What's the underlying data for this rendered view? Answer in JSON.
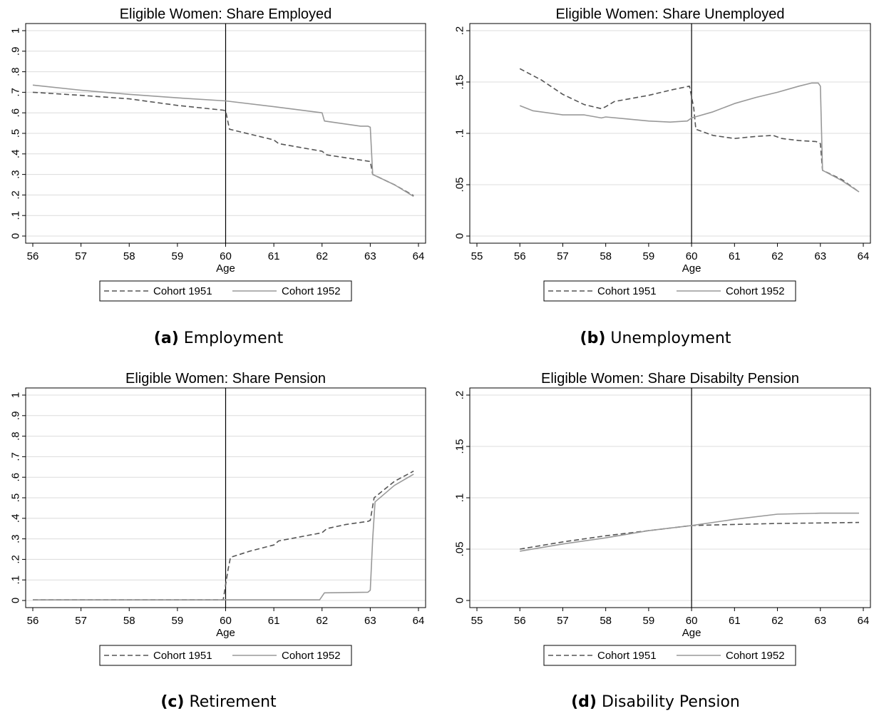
{
  "chart_data": [
    {
      "panel": "a",
      "type": "line",
      "title": "Eligible Women: Share Employed",
      "caption_letter": "(a)",
      "caption_text": "Employment",
      "xlabel": "Age",
      "ylabel": "",
      "xlim": [
        56,
        64
      ],
      "ylim": [
        0,
        1
      ],
      "xticks": [
        56,
        57,
        58,
        59,
        60,
        61,
        62,
        63,
        64
      ],
      "xtick_labels": [
        "56",
        "57",
        "58",
        "59",
        "60",
        "61",
        "62",
        "63",
        "64"
      ],
      "yticks": [
        0,
        0.1,
        0.2,
        0.3,
        0.4,
        0.5,
        0.6,
        0.7,
        0.8,
        0.9,
        1
      ],
      "ytick_labels": [
        "0",
        ".1",
        ".2",
        ".3",
        ".4",
        ".5",
        ".6",
        ".7",
        ".8",
        ".9",
        "1"
      ],
      "vline": 60,
      "grid": true,
      "legend": "bottom",
      "series": [
        {
          "name": "Cohort 1951",
          "style": "dashed",
          "color": "#555555",
          "x": [
            56,
            57,
            58,
            59,
            59.95,
            60,
            60.08,
            61,
            61.1,
            62,
            62.1,
            63,
            63.05,
            63.5,
            63.9
          ],
          "y": [
            0.7,
            0.685,
            0.668,
            0.636,
            0.613,
            0.61,
            0.52,
            0.468,
            0.45,
            0.413,
            0.395,
            0.363,
            0.3,
            0.25,
            0.197
          ]
        },
        {
          "name": "Cohort 1952",
          "style": "solid",
          "color": "#999999",
          "x": [
            56,
            57,
            58,
            59,
            60,
            61,
            62,
            62.05,
            62.8,
            62.95,
            63,
            63.05,
            63.5,
            63.9
          ],
          "y": [
            0.735,
            0.71,
            0.69,
            0.673,
            0.658,
            0.63,
            0.6,
            0.56,
            0.535,
            0.535,
            0.53,
            0.3,
            0.25,
            0.193
          ]
        }
      ]
    },
    {
      "panel": "b",
      "type": "line",
      "title": "Eligible Women: Share Unemployed",
      "caption_letter": "(b)",
      "caption_text": "Unemployment",
      "xlabel": "Age",
      "ylabel": "",
      "xlim": [
        55,
        64
      ],
      "ylim": [
        0,
        0.2
      ],
      "xticks": [
        55,
        56,
        57,
        58,
        59,
        60,
        61,
        62,
        63,
        64
      ],
      "xtick_labels": [
        "55",
        "56",
        "57",
        "58",
        "59",
        "60",
        "61",
        "62",
        "63",
        "64"
      ],
      "yticks": [
        0,
        0.05,
        0.1,
        0.15,
        0.2
      ],
      "ytick_labels": [
        "0",
        ".05",
        ".1",
        ".15",
        ".2"
      ],
      "vline": 60,
      "grid": true,
      "legend": "bottom",
      "series": [
        {
          "name": "Cohort 1951",
          "style": "dashed",
          "color": "#555555",
          "x": [
            56,
            56.5,
            57,
            57.5,
            57.9,
            58,
            58.2,
            58.6,
            59,
            59.5,
            59.95,
            60.05,
            60.1,
            60.5,
            61,
            61.5,
            61.9,
            62.1,
            62.5,
            62.9,
            63,
            63.05,
            63.5,
            63.9
          ],
          "y": [
            0.163,
            0.152,
            0.138,
            0.128,
            0.124,
            0.126,
            0.131,
            0.134,
            0.137,
            0.142,
            0.146,
            0.125,
            0.104,
            0.098,
            0.095,
            0.097,
            0.098,
            0.095,
            0.093,
            0.092,
            0.09,
            0.064,
            0.055,
            0.043
          ]
        },
        {
          "name": "Cohort 1952",
          "style": "solid",
          "color": "#999999",
          "x": [
            56,
            56.3,
            57,
            57.5,
            57.9,
            58,
            58.5,
            59,
            59.5,
            59.9,
            60,
            60.5,
            61,
            61.5,
            62,
            62.5,
            62.8,
            62.95,
            63,
            63.05,
            63.5,
            63.9
          ],
          "y": [
            0.127,
            0.122,
            0.118,
            0.118,
            0.115,
            0.116,
            0.114,
            0.112,
            0.111,
            0.112,
            0.115,
            0.121,
            0.129,
            0.135,
            0.14,
            0.146,
            0.149,
            0.149,
            0.146,
            0.064,
            0.054,
            0.043
          ]
        }
      ]
    },
    {
      "panel": "c",
      "type": "line",
      "title": "Eligible Women: Share Pension",
      "caption_letter": "(c)",
      "caption_text": "Retirement",
      "xlabel": "Age",
      "ylabel": "",
      "xlim": [
        56,
        64
      ],
      "ylim": [
        0,
        1
      ],
      "xticks": [
        56,
        57,
        58,
        59,
        60,
        61,
        62,
        63,
        64
      ],
      "xtick_labels": [
        "56",
        "57",
        "58",
        "59",
        "60",
        "61",
        "62",
        "63",
        "64"
      ],
      "yticks": [
        0,
        0.1,
        0.2,
        0.3,
        0.4,
        0.5,
        0.6,
        0.7,
        0.8,
        0.9,
        1
      ],
      "ytick_labels": [
        "0",
        ".1",
        ".2",
        ".3",
        ".4",
        ".5",
        ".6",
        ".7",
        ".8",
        ".9",
        "1"
      ],
      "vline": 60,
      "grid": true,
      "legend": "bottom",
      "series": [
        {
          "name": "Cohort 1951",
          "style": "dashed",
          "color": "#555555",
          "x": [
            56,
            59.95,
            60.05,
            60.1,
            60.5,
            61,
            61.1,
            62,
            62.1,
            62.5,
            62.95,
            63,
            63.08,
            63.5,
            63.9
          ],
          "y": [
            0.003,
            0.003,
            0.15,
            0.21,
            0.24,
            0.27,
            0.29,
            0.33,
            0.35,
            0.37,
            0.385,
            0.39,
            0.5,
            0.58,
            0.63
          ]
        },
        {
          "name": "Cohort 1952",
          "style": "solid",
          "color": "#999999",
          "x": [
            56,
            61.95,
            62.05,
            62.95,
            63,
            63.05,
            63.1,
            63.5,
            63.9
          ],
          "y": [
            0.003,
            0.003,
            0.037,
            0.04,
            0.05,
            0.3,
            0.48,
            0.56,
            0.615
          ]
        }
      ]
    },
    {
      "panel": "d",
      "type": "line",
      "title": "Eligible Women: Share Disabilty Pension",
      "caption_letter": "(d)",
      "caption_text": "Disability Pension",
      "xlabel": "Age",
      "ylabel": "",
      "xlim": [
        55,
        64
      ],
      "ylim": [
        0,
        0.2
      ],
      "xticks": [
        55,
        56,
        57,
        58,
        59,
        60,
        61,
        62,
        63,
        64
      ],
      "xtick_labels": [
        "55",
        "56",
        "57",
        "58",
        "59",
        "60",
        "61",
        "62",
        "63",
        "64"
      ],
      "yticks": [
        0,
        0.05,
        0.1,
        0.15,
        0.2
      ],
      "ytick_labels": [
        "0",
        ".05",
        ".1",
        ".15",
        ".2"
      ],
      "vline": 60,
      "grid": true,
      "legend": "bottom",
      "series": [
        {
          "name": "Cohort 1951",
          "style": "dashed",
          "color": "#555555",
          "x": [
            56,
            57,
            58,
            59,
            60,
            61,
            62,
            63,
            63.9
          ],
          "y": [
            0.05,
            0.057,
            0.063,
            0.068,
            0.073,
            0.074,
            0.075,
            0.0755,
            0.076
          ]
        },
        {
          "name": "Cohort 1952",
          "style": "solid",
          "color": "#999999",
          "x": [
            56,
            57,
            58,
            59,
            60,
            61,
            62,
            63,
            63.9
          ],
          "y": [
            0.048,
            0.055,
            0.061,
            0.068,
            0.073,
            0.079,
            0.084,
            0.085,
            0.085
          ]
        }
      ]
    }
  ]
}
